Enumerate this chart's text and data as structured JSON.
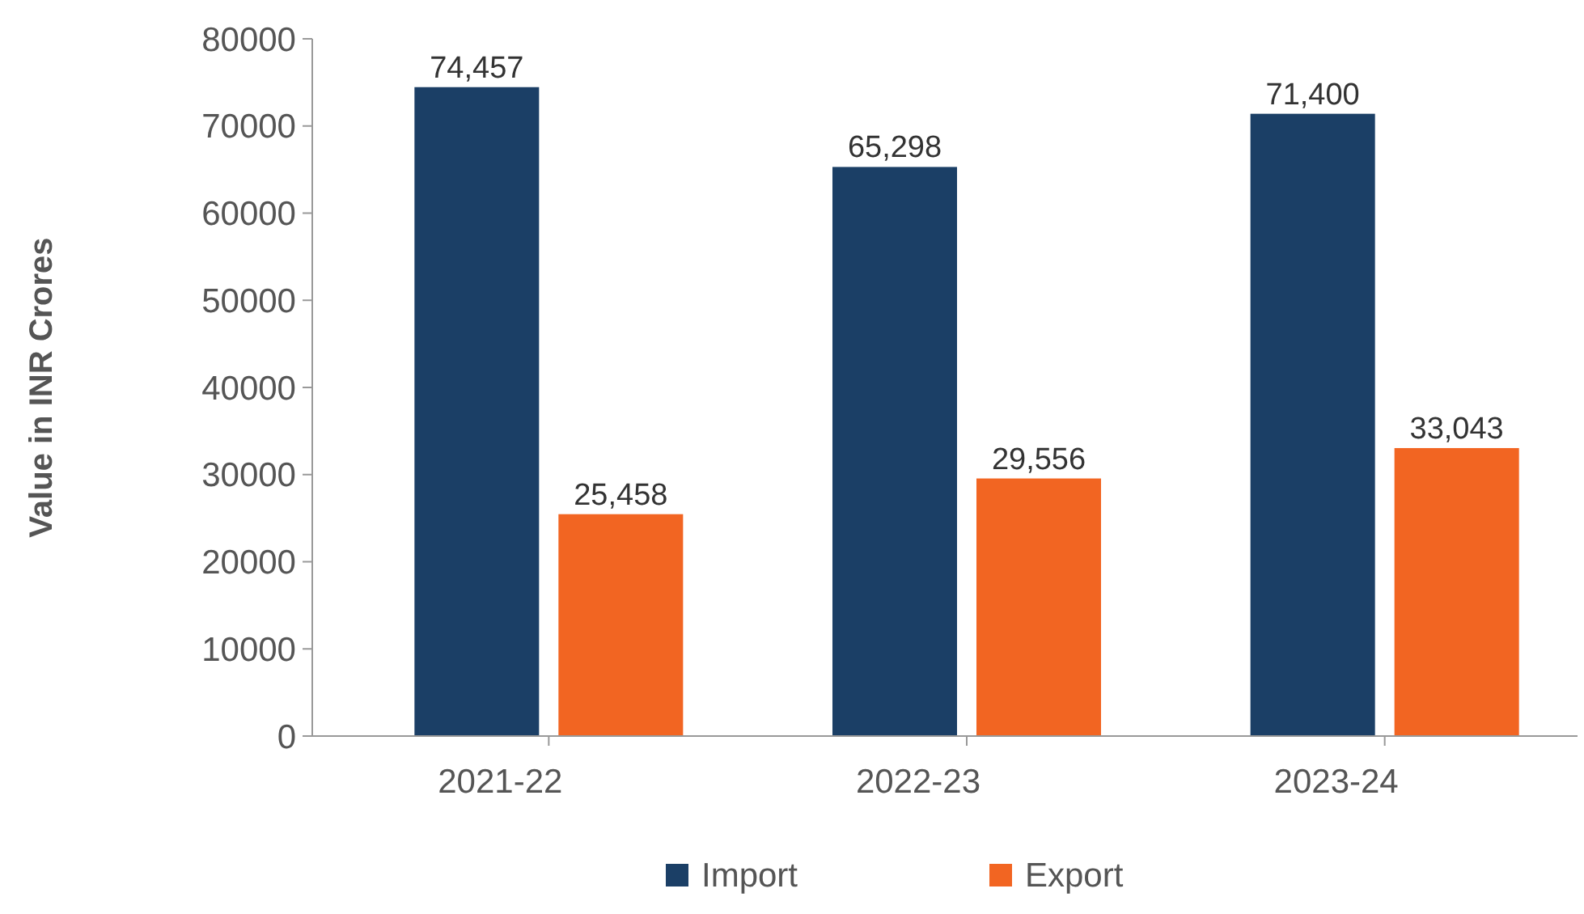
{
  "chart_data": {
    "type": "bar",
    "ylabel": "Value in INR Crores",
    "categories": [
      "2021-22",
      "2022-23",
      "2023-24"
    ],
    "series": [
      {
        "name": "Import",
        "color": "#1b3f66",
        "values": [
          74457,
          65298,
          71400
        ],
        "value_labels": [
          "74,457",
          "65,298",
          "71,400"
        ]
      },
      {
        "name": "Export",
        "color": "#f26522",
        "values": [
          25458,
          29556,
          33043
        ],
        "value_labels": [
          "25,458",
          "29,556",
          "33,043"
        ]
      }
    ],
    "ylim": [
      0,
      80000
    ],
    "yticks": [
      0,
      10000,
      20000,
      30000,
      40000,
      50000,
      60000,
      70000,
      80000
    ],
    "grid": false,
    "legend": "bottom"
  }
}
